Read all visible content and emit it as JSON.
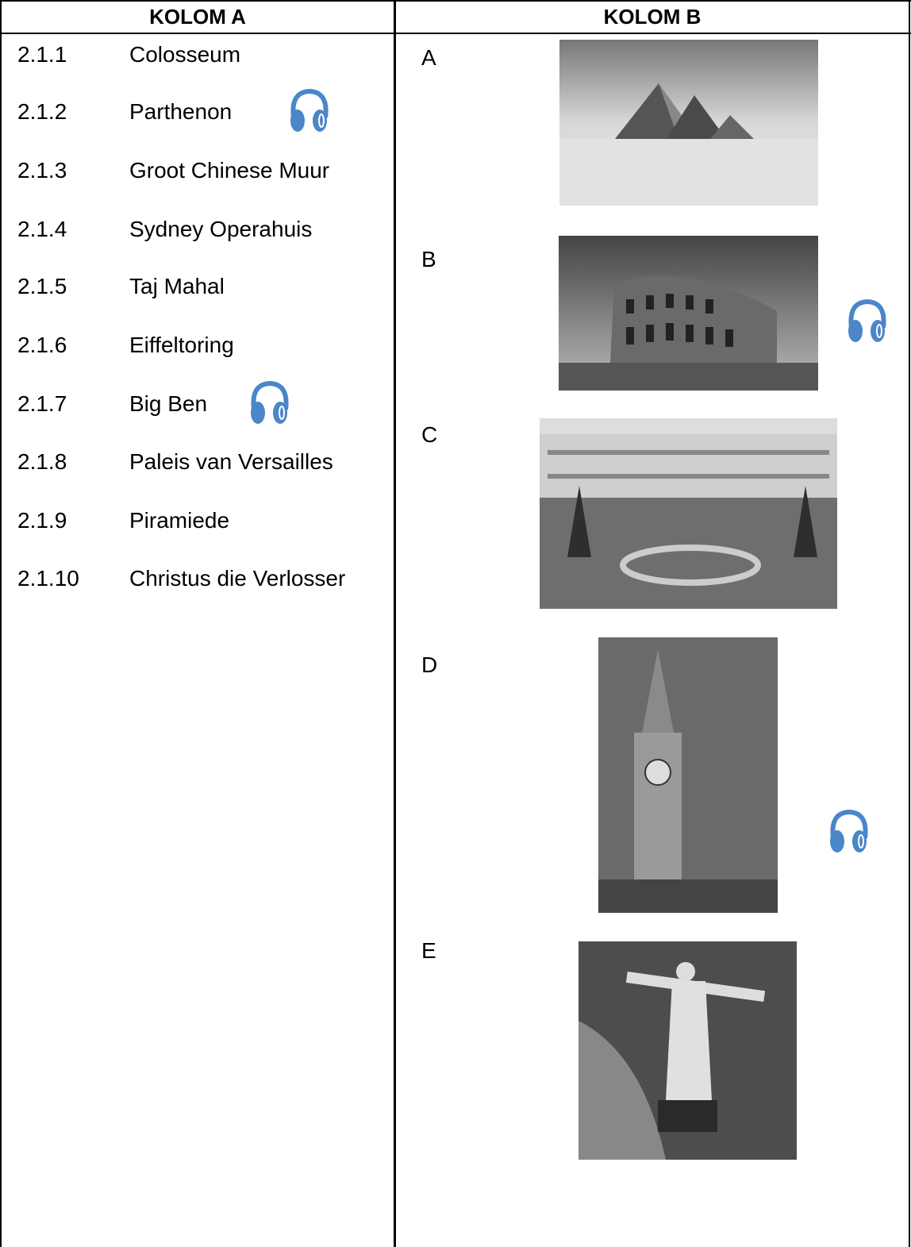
{
  "header": {
    "columns": [
      "KOLOM A",
      "KOLOM B"
    ]
  },
  "column_a": [
    {
      "number": "2.1.1",
      "label": "Colosseum"
    },
    {
      "number": "2.1.2",
      "label": "Parthenon"
    },
    {
      "number": "2.1.3",
      "label": "Groot Chinese Muur"
    },
    {
      "number": "2.1.4",
      "label": "Sydney Operahuis"
    },
    {
      "number": "2.1.5",
      "label": "Taj Mahal"
    },
    {
      "number": "2.1.6",
      "label": "Eiffeltoring"
    },
    {
      "number": "2.1.7",
      "label": "Big Ben"
    },
    {
      "number": "2.1.8",
      "label": "Paleis van Versailles"
    },
    {
      "number": "2.1.9",
      "label": "Piramiede"
    },
    {
      "number": "2.1.10",
      "label": "Christus die Verlosser"
    }
  ],
  "column_b": [
    "A",
    "B",
    "C",
    "D",
    "E"
  ]
}
